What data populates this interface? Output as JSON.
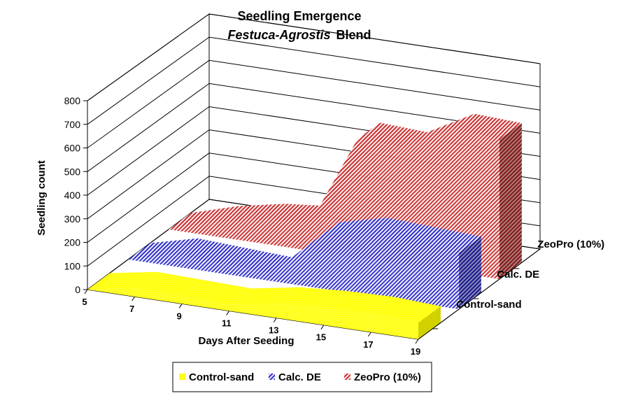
{
  "chart_data": {
    "type": "area",
    "title": "Seedling Emergence",
    "subtitle_italic": "Festuca-Agrostis",
    "subtitle_rest": "Blend",
    "xlabel": "Days After Seeding",
    "ylabel": "Seedling count",
    "ylim": [
      0,
      800
    ],
    "y_ticks": [
      "0",
      "100",
      "200",
      "300",
      "400",
      "500",
      "600",
      "700",
      "800"
    ],
    "x": [
      5,
      7,
      9,
      11,
      13,
      15,
      17,
      19
    ],
    "x_ticks": [
      "5",
      "7",
      "9",
      "11",
      "13",
      "15",
      "17",
      "19"
    ],
    "series": [
      {
        "name": "Control-sand",
        "color": "#ffff00",
        "values": [
          0,
          35,
          30,
          25,
          60,
          75,
          80,
          70
        ]
      },
      {
        "name": "Calc. DE",
        "color": "#3333cc",
        "values": [
          0,
          50,
          40,
          30,
          210,
          260,
          250,
          240
        ]
      },
      {
        "name": "ZeoPro (10%)",
        "color": "#cc3333",
        "values": [
          0,
          60,
          100,
          120,
          510,
          500,
          610,
          600
        ]
      }
    ],
    "grid": true,
    "legend_position": "bottom"
  }
}
